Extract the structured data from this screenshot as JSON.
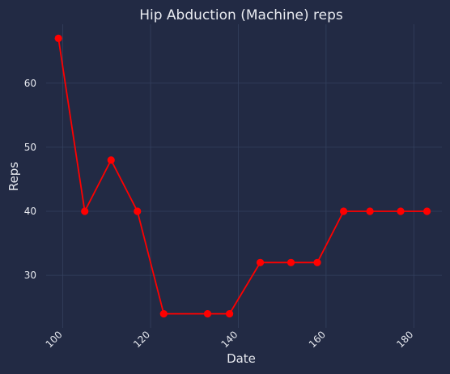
{
  "chart_data": {
    "type": "line",
    "title": "Hip Abduction (Machine) reps",
    "xlabel": "Date",
    "ylabel": "Reps",
    "xlim": [
      96.2,
      186.4
    ],
    "ylim": [
      21.8,
      69.2
    ],
    "x_ticks": [
      100,
      120,
      140,
      160,
      180
    ],
    "y_ticks": [
      30,
      40,
      50,
      60
    ],
    "grid": true,
    "legend": "none",
    "series": [
      {
        "color": "#ff0000",
        "x": [
          99,
          105,
          111,
          117,
          123,
          133,
          138,
          145,
          152,
          158,
          164,
          170,
          177,
          183
        ],
        "y": [
          67,
          40,
          48,
          40,
          24,
          24,
          24,
          32,
          32,
          32,
          40,
          40,
          40,
          40
        ]
      }
    ]
  }
}
